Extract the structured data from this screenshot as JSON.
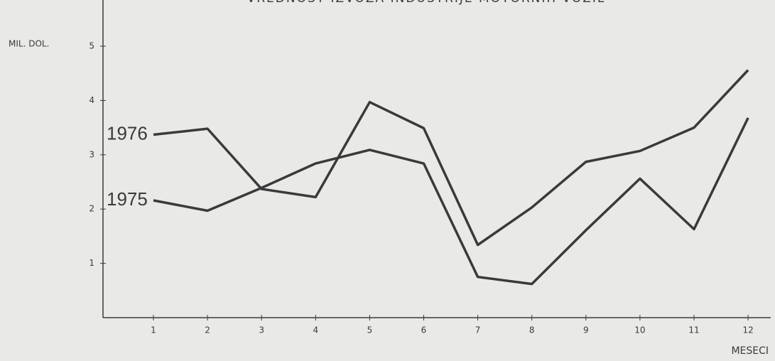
{
  "chart_data": {
    "type": "line",
    "title": "VREDNOST IZVOZA INDUSTRIJE MOTORNIH VOZIL",
    "y_label": "MIL. DOL.",
    "x_label": "MESECI",
    "categories": [
      "1",
      "2",
      "3",
      "4",
      "5",
      "6",
      "7",
      "8",
      "9",
      "10",
      "11",
      "12"
    ],
    "series": [
      {
        "name": "1976",
        "color": "#3a3a3a",
        "values": [
          3.37,
          3.48,
          2.37,
          2.22,
          3.97,
          3.49,
          1.34,
          2.03,
          2.87,
          3.07,
          3.5,
          4.56
        ]
      },
      {
        "name": "1975",
        "color": "#3a3a3a",
        "values": [
          2.16,
          1.97,
          2.39,
          2.84,
          3.09,
          2.84,
          0.75,
          0.62,
          1.61,
          2.56,
          1.63,
          3.68
        ]
      }
    ],
    "ylim": [
      0,
      5
    ],
    "yticks": [
      1,
      2,
      3,
      4,
      5
    ],
    "grid": false
  }
}
